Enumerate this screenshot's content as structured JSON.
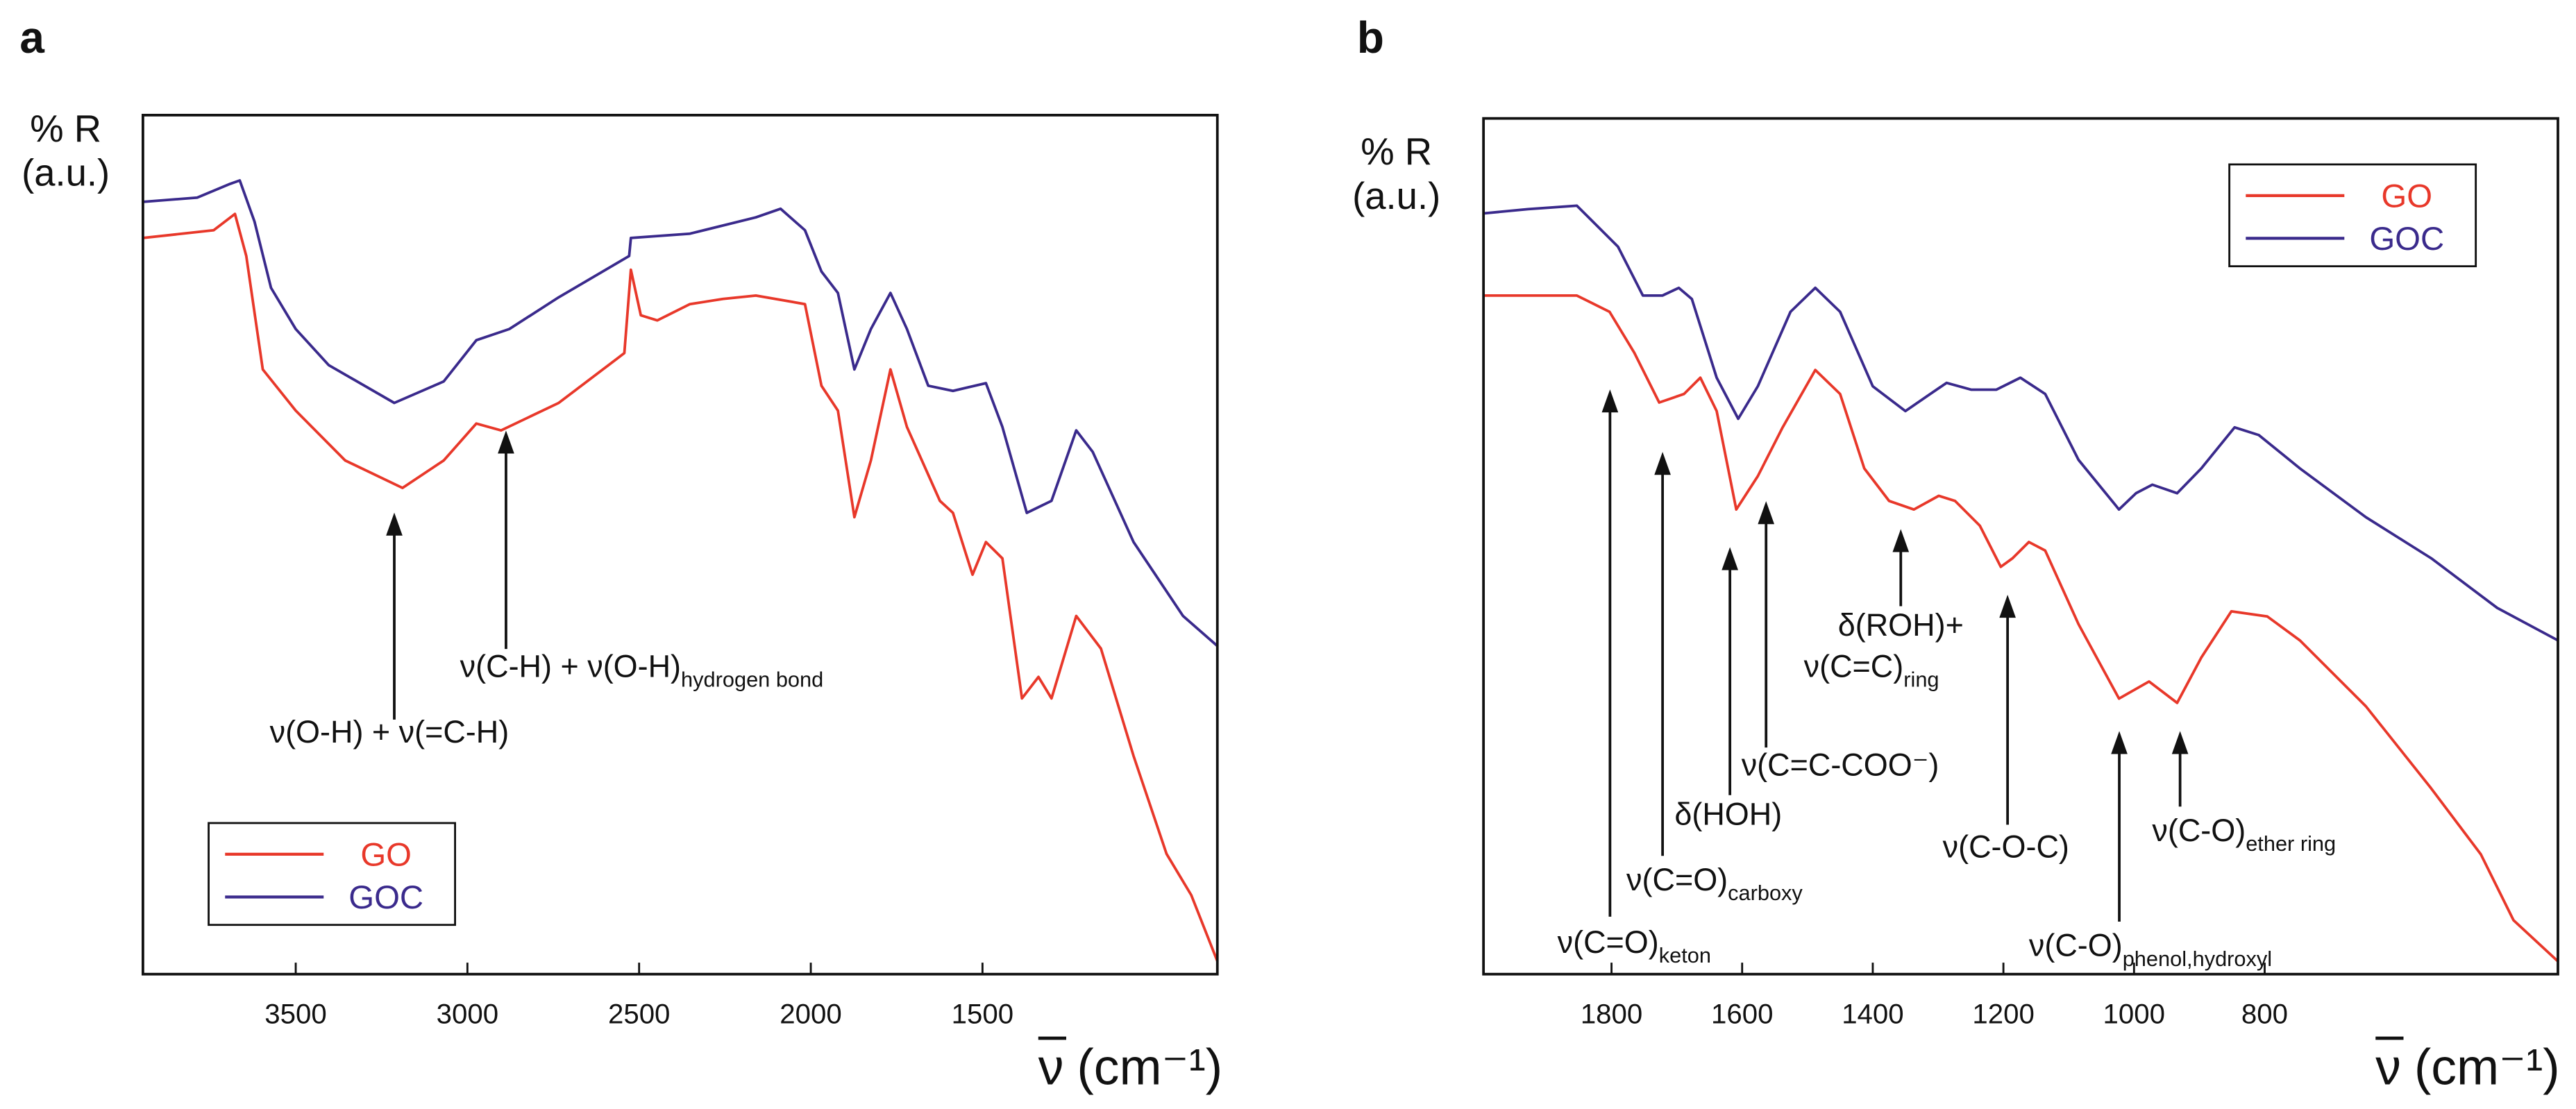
{
  "chart_data": [
    {
      "type": "line",
      "panel_label": "a",
      "ylabel": [
        "% R",
        "(a.u.)"
      ],
      "xlabel_symbol": "ν",
      "xlabel_unit": "(cm⁻¹)",
      "xlim": [
        3945,
        816
      ],
      "xticks": [
        3500,
        3000,
        2500,
        2000,
        1500
      ],
      "ylim": [
        0,
        100
      ],
      "legend": "lower left",
      "series": [
        {
          "name": "GO",
          "color": "#e8382a",
          "x": [
            3945,
            3739,
            3677,
            3644,
            3596,
            3500,
            3356,
            3189,
            3069,
            2974,
            2902,
            2734,
            2543,
            2524,
            2495,
            2447,
            2352,
            2256,
            2160,
            2017,
            1969,
            1921,
            1873,
            1825,
            1768,
            1720,
            1624,
            1586,
            1529,
            1490,
            1442,
            1385,
            1337,
            1299,
            1227,
            1155,
            1060,
            964,
            892,
            816
          ],
          "values": [
            85.7,
            86.6,
            88.5,
            83.6,
            70.4,
            65.6,
            59.8,
            56.6,
            59.8,
            64.1,
            63.3,
            66.5,
            72.3,
            82.0,
            76.7,
            76.1,
            78.0,
            78.6,
            79.0,
            78.0,
            68.5,
            65.6,
            53.2,
            59.8,
            70.4,
            63.7,
            55.1,
            53.7,
            46.5,
            50.3,
            48.4,
            32.1,
            34.6,
            32.1,
            41.7,
            37.9,
            25.4,
            14.0,
            9.2,
            1.5
          ]
        },
        {
          "name": "GOC",
          "color": "#3a2a8c",
          "x": [
            3945,
            3787,
            3691,
            3663,
            3620,
            3572,
            3500,
            3404,
            3213,
            3069,
            2974,
            2878,
            2734,
            2529,
            2524,
            2352,
            2160,
            2088,
            2017,
            1969,
            1921,
            1873,
            1825,
            1768,
            1720,
            1658,
            1586,
            1490,
            1442,
            1371,
            1299,
            1227,
            1179,
            1060,
            916,
            816
          ],
          "values": [
            89.9,
            90.4,
            92.0,
            92.4,
            87.6,
            79.9,
            75.1,
            70.9,
            66.5,
            69.0,
            73.8,
            75.1,
            78.8,
            83.6,
            85.7,
            86.2,
            88.1,
            89.1,
            86.6,
            81.8,
            79.3,
            70.4,
            75.1,
            79.3,
            75.1,
            68.5,
            67.9,
            68.8,
            63.7,
            53.7,
            55.1,
            63.3,
            60.8,
            50.3,
            41.7,
            38.2
          ]
        }
      ],
      "annotations": [
        {
          "text": "ν(O-H) + ν(=C-H)"
        },
        {
          "text": "ν(C-H)  + ν(O-H)",
          "sub": "hydrogen bond"
        }
      ]
    },
    {
      "type": "line",
      "panel_label": "b",
      "ylabel": [
        "% R",
        "(a.u.)"
      ],
      "xlabel_symbol": "ν",
      "xlabel_unit": "(cm⁻¹)",
      "xlim": [
        1996,
        351
      ],
      "xticks": [
        1800,
        1600,
        1400,
        1200,
        1000,
        800
      ],
      "ylim": [
        0,
        100
      ],
      "legend": "upper right",
      "series": [
        {
          "name": "GO",
          "color": "#e8382a",
          "x": [
            1996,
            1916,
            1853,
            1803,
            1765,
            1727,
            1689,
            1664,
            1639,
            1609,
            1576,
            1538,
            1488,
            1450,
            1413,
            1375,
            1337,
            1299,
            1274,
            1236,
            1204,
            1186,
            1161,
            1136,
            1085,
            1023,
            977,
            934,
            897,
            851,
            796,
            746,
            645,
            545,
            469,
            419,
            351
          ],
          "values": [
            79.3,
            79.3,
            79.3,
            77.4,
            72.6,
            66.8,
            67.8,
            69.7,
            65.8,
            54.3,
            58.2,
            63.9,
            70.6,
            67.8,
            59.1,
            55.3,
            54.3,
            55.9,
            55.3,
            52.4,
            47.6,
            48.6,
            50.5,
            49.5,
            40.9,
            32.2,
            34.2,
            31.7,
            37.0,
            42.4,
            41.8,
            39.0,
            31.3,
            21.7,
            14.0,
            6.3,
            1.5
          ]
        },
        {
          "name": "GOC",
          "color": "#3a2a8c",
          "x": [
            1996,
            1928,
            1853,
            1790,
            1752,
            1722,
            1697,
            1677,
            1639,
            1606,
            1576,
            1526,
            1488,
            1450,
            1400,
            1350,
            1312,
            1287,
            1249,
            1211,
            1174,
            1136,
            1085,
            1023,
            997,
            972,
            934,
            897,
            846,
            809,
            746,
            645,
            545,
            444,
            351
          ],
          "values": [
            88.9,
            89.4,
            89.8,
            85.0,
            79.3,
            79.3,
            80.2,
            78.9,
            69.7,
            64.9,
            68.7,
            77.4,
            80.2,
            77.4,
            68.7,
            65.8,
            67.8,
            69.1,
            68.3,
            68.3,
            69.7,
            67.8,
            60.1,
            54.3,
            56.2,
            57.2,
            56.2,
            59.1,
            63.9,
            63.0,
            59.1,
            53.4,
            48.6,
            42.8,
            39.0
          ]
        }
      ],
      "annotations": [
        {
          "text": "ν(C=O)",
          "sub": "keton"
        },
        {
          "text": "ν(C=O)",
          "sub": "carboxy"
        },
        {
          "text": "δ(HOH)"
        },
        {
          "text": "ν(C=C-COO⁻)"
        },
        {
          "text": "δ(ROH)+"
        },
        {
          "text": "ν(C=C)",
          "sub": "ring"
        },
        {
          "text": "ν(C-O-C)"
        },
        {
          "text": "ν(C-O)",
          "sub": "phenol,hydroxyl"
        },
        {
          "text": "ν(C-O)",
          "sub": "ether ring"
        }
      ]
    }
  ]
}
